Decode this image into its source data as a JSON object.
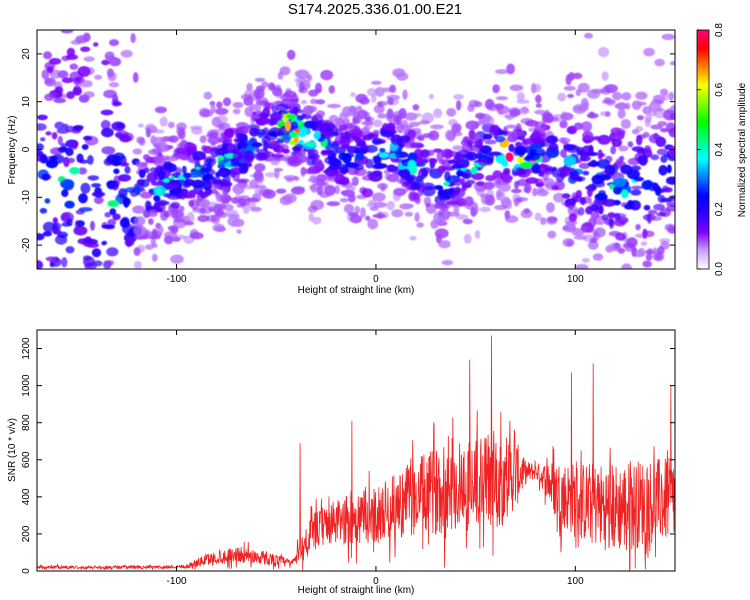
{
  "title": "S174.2025.336.01.00.E21",
  "chart_data": [
    {
      "type": "heatmap",
      "name": "spectrogram",
      "xlabel": "Height of straight line (km)",
      "ylabel": "Frequency (Hz)",
      "xlim": [
        -170,
        150
      ],
      "ylim": [
        -25,
        25
      ],
      "xticks": [
        -100,
        0,
        100
      ],
      "xtick_labels": [
        "-100",
        "0",
        "100"
      ],
      "yticks": [
        -20,
        -10,
        0,
        10,
        20
      ],
      "ytick_labels": [
        "-20",
        "-10",
        "0",
        "10",
        "20"
      ],
      "ridge_x": [
        -130,
        -110,
        -90,
        -70,
        -55,
        -45,
        -35,
        -20,
        -5,
        5,
        15,
        25,
        35,
        45,
        55,
        60,
        68,
        80,
        95,
        110,
        130,
        150
      ],
      "ridge_y": [
        -9,
        -8,
        -5,
        -2,
        3,
        5,
        3,
        -1,
        -3,
        0,
        -2,
        -5,
        -7,
        -4,
        -1,
        1,
        -2,
        -1,
        -3,
        -6,
        -8,
        -4
      ],
      "colorbar": {
        "label": "Normalized spectral amplitude",
        "range": [
          0,
          0.8
        ],
        "ticks": [
          "0.0",
          "0.2",
          "0.4",
          "0.6",
          "0.8"
        ],
        "colors": [
          "#ffffff",
          "#c8a0ff",
          "#8000ff",
          "#3000ff",
          "#0000ff",
          "#0080ff",
          "#00ffff",
          "#00ff80",
          "#00ff00",
          "#80ff00",
          "#ffff00",
          "#ff8000",
          "#ff0000",
          "#ff0080"
        ]
      }
    },
    {
      "type": "line",
      "name": "snr",
      "xlabel": "Height of straight line (km)",
      "ylabel": "SNR (10 * v/v)",
      "xlim": [
        -170,
        150
      ],
      "ylim": [
        0,
        1300
      ],
      "xticks": [
        -100,
        0,
        100
      ],
      "xtick_labels": [
        "-100",
        "0",
        "100"
      ],
      "yticks": [
        0,
        200,
        400,
        600,
        800,
        1000,
        1200
      ],
      "ytick_labels": [
        "0",
        "200",
        "400",
        "600",
        "800",
        "1000",
        "1200"
      ],
      "color": "#ee2222",
      "envelope_x": [
        -170,
        -110,
        -95,
        -85,
        -70,
        -55,
        -42,
        -38,
        -35,
        -30,
        -25,
        -15,
        0,
        10,
        20,
        30,
        40,
        50,
        60,
        70,
        75,
        80,
        85,
        90,
        100,
        110,
        120,
        130,
        140,
        150
      ],
      "envelope_mean": [
        20,
        20,
        25,
        60,
        90,
        70,
        40,
        120,
        160,
        220,
        250,
        270,
        300,
        350,
        400,
        430,
        460,
        470,
        500,
        520,
        530,
        540,
        500,
        440,
        380,
        360,
        340,
        360,
        380,
        380
      ],
      "envelope_amp": [
        15,
        15,
        20,
        60,
        80,
        70,
        40,
        100,
        200,
        180,
        200,
        250,
        280,
        320,
        380,
        420,
        450,
        480,
        500,
        350,
        120,
        80,
        150,
        300,
        380,
        420,
        450,
        440,
        420,
        420
      ],
      "peaks": [
        {
          "x": -38,
          "y": 690
        },
        {
          "x": -12,
          "y": 810
        },
        {
          "x": 58,
          "y": 1270
        },
        {
          "x": 47,
          "y": 1140
        },
        {
          "x": 98,
          "y": 1070
        },
        {
          "x": 109,
          "y": 1120
        },
        {
          "x": 148,
          "y": 1000
        }
      ]
    }
  ]
}
